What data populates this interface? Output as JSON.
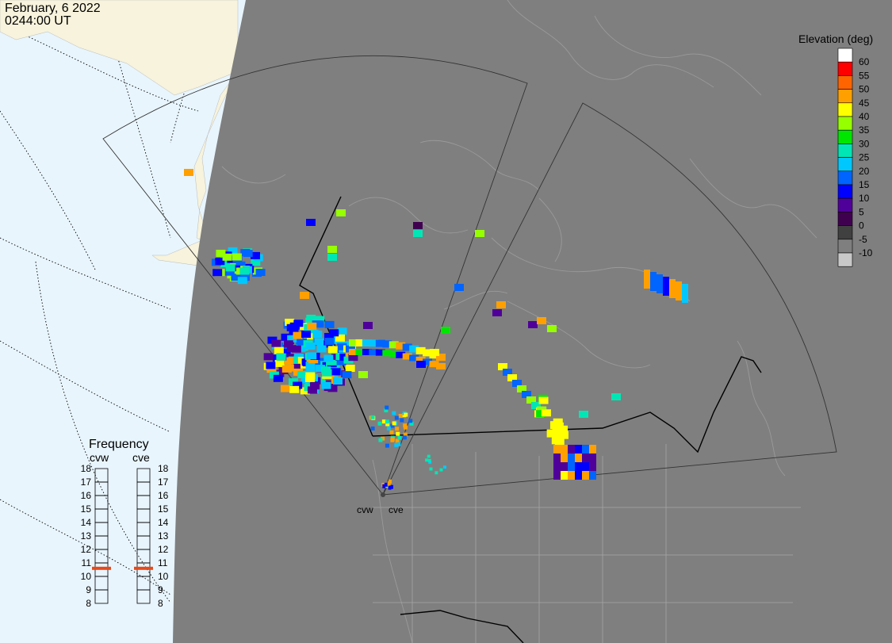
{
  "header": {
    "date": "February, 6 2022",
    "time": "0244:00 UT"
  },
  "legend": {
    "title": "Elevation (deg)",
    "entries": [
      {
        "label": "60",
        "color": "#ffffff"
      },
      {
        "label": "55",
        "color": "#ff0000"
      },
      {
        "label": "50",
        "color": "#ff6400"
      },
      {
        "label": "45",
        "color": "#ffa000"
      },
      {
        "label": "40",
        "color": "#ffff00"
      },
      {
        "label": "35",
        "color": "#96ff00"
      },
      {
        "label": "30",
        "color": "#00e600"
      },
      {
        "label": "25",
        "color": "#00e6b4"
      },
      {
        "label": "20",
        "color": "#00c8ff"
      },
      {
        "label": "15",
        "color": "#0064ff"
      },
      {
        "label": "10",
        "color": "#0000ff"
      },
      {
        "label": "5",
        "color": "#50009a"
      },
      {
        "label": "0",
        "color": "#400050"
      },
      {
        "label": "-5",
        "color": "#404040"
      },
      {
        "label": "-10",
        "color": "#7f7f7f"
      },
      {
        "label": "",
        "color": "#c8c8c8"
      }
    ]
  },
  "frequency": {
    "title": "Frequency",
    "scale": [
      "18",
      "17",
      "16",
      "15",
      "14",
      "13",
      "12",
      "11",
      "10",
      "9",
      "8"
    ],
    "radars": [
      {
        "code": "cvw",
        "value_mhz": 10.6
      },
      {
        "code": "cve",
        "value_mhz": 10.6
      }
    ],
    "marker_color": "#e64a19"
  },
  "map": {
    "station_labels": [
      "cvw",
      "cve"
    ],
    "ocean_color": "#e8f5fd",
    "land_day_color": "#f7f3dc",
    "night_color": "#7f7f7f"
  }
}
